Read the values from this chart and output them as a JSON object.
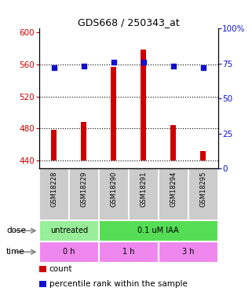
{
  "title": "GDS668 / 250343_at",
  "samples": [
    "GSM18228",
    "GSM18229",
    "GSM18290",
    "GSM18291",
    "GSM18294",
    "GSM18295"
  ],
  "counts": [
    478,
    488,
    557,
    578,
    484,
    452
  ],
  "percentiles": [
    72,
    73,
    76,
    76,
    73,
    72
  ],
  "ylim_left": [
    430,
    605
  ],
  "ylim_right": [
    0,
    100
  ],
  "yticks_left": [
    440,
    480,
    520,
    560,
    600
  ],
  "yticks_right": [
    0,
    25,
    50,
    75,
    100
  ],
  "bar_color": "#cc0000",
  "dot_color": "#1111cc",
  "bar_width": 0.18,
  "dose_labels": [
    {
      "text": "untreated",
      "span": [
        0,
        2
      ],
      "color": "#99ee99"
    },
    {
      "text": "0.1 uM IAA",
      "span": [
        2,
        6
      ],
      "color": "#55dd55"
    }
  ],
  "time_labels": [
    {
      "text": "0 h",
      "span": [
        0,
        2
      ],
      "color": "#ee88ee"
    },
    {
      "text": "1 h",
      "span": [
        2,
        4
      ],
      "color": "#ee88ee"
    },
    {
      "text": "3 h",
      "span": [
        4,
        6
      ],
      "color": "#ee88ee"
    }
  ],
  "dose_row_label": "dose",
  "time_row_label": "time",
  "legend_count_label": "count",
  "legend_percentile_label": "percentile rank within the sample",
  "sample_box_color": "#cccccc",
  "left_axis_color": "#cc0000",
  "right_axis_color": "#1111cc",
  "baseline": 440,
  "grid_yticks": [
    440,
    480,
    520,
    560
  ]
}
